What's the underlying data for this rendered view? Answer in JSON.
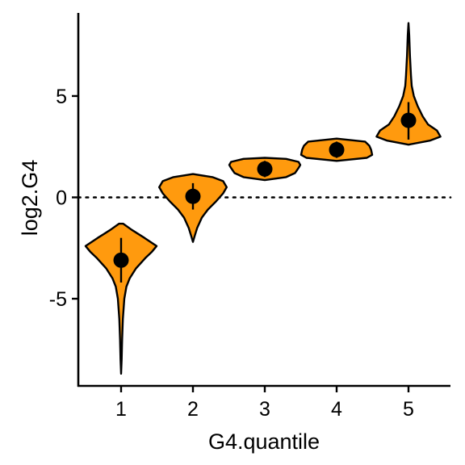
{
  "chart_data": {
    "type": "violin",
    "xlabel": "G4.quantile",
    "ylabel": "log2.G4",
    "categories": [
      "1",
      "2",
      "3",
      "4",
      "5"
    ],
    "x_ticks": [
      "1",
      "2",
      "3",
      "4",
      "5"
    ],
    "y_ticks": [
      {
        "value": 5,
        "label": "5"
      },
      {
        "value": 0,
        "label": "0"
      },
      {
        "value": -5,
        "label": "-5"
      }
    ],
    "ylim": [
      -9.3,
      9.1
    ],
    "reference_line": {
      "y": 0,
      "style": "dotted"
    },
    "fill_color": "#ff9a0e",
    "outline_color": "#000000",
    "point_color": "#000000",
    "grid": false,
    "groups": [
      {
        "category": "1",
        "mean": -3.1,
        "sd_low": -4.2,
        "sd_high": -2.0,
        "density_profile": [
          [
            -8.7,
            0.0
          ],
          [
            -8.0,
            0.015
          ],
          [
            -7.0,
            0.03
          ],
          [
            -6.0,
            0.05
          ],
          [
            -5.0,
            0.09
          ],
          [
            -4.4,
            0.15
          ],
          [
            -4.0,
            0.24
          ],
          [
            -3.5,
            0.42
          ],
          [
            -3.0,
            0.68
          ],
          [
            -2.7,
            0.86
          ],
          [
            -2.4,
            1.0
          ],
          [
            -2.0,
            0.66
          ],
          [
            -1.6,
            0.3
          ],
          [
            -1.3,
            0.06
          ]
        ]
      },
      {
        "category": "2",
        "mean": 0.05,
        "sd_low": -0.6,
        "sd_high": 0.7,
        "density_profile": [
          [
            -2.2,
            0.0
          ],
          [
            -1.9,
            0.05
          ],
          [
            -1.5,
            0.12
          ],
          [
            -1.0,
            0.25
          ],
          [
            -0.6,
            0.42
          ],
          [
            -0.2,
            0.65
          ],
          [
            0.2,
            0.85
          ],
          [
            0.5,
            0.95
          ],
          [
            0.8,
            0.85
          ],
          [
            1.0,
            0.55
          ],
          [
            1.15,
            0.0
          ]
        ]
      },
      {
        "category": "3",
        "mean": 1.4,
        "sd_low": 1.0,
        "sd_high": 1.8,
        "density_profile": [
          [
            0.85,
            0.0
          ],
          [
            1.0,
            0.6
          ],
          [
            1.2,
            0.85
          ],
          [
            1.45,
            0.95
          ],
          [
            1.6,
            1.0
          ],
          [
            1.75,
            0.95
          ],
          [
            1.9,
            0.6
          ],
          [
            1.95,
            0.0
          ]
        ]
      },
      {
        "category": "4",
        "mean": 2.35,
        "sd_low": 1.95,
        "sd_high": 2.75,
        "density_profile": [
          [
            1.8,
            0.0
          ],
          [
            1.95,
            0.85
          ],
          [
            2.1,
            1.0
          ],
          [
            2.35,
            0.97
          ],
          [
            2.55,
            0.92
          ],
          [
            2.75,
            0.8
          ],
          [
            2.9,
            0.0
          ]
        ]
      },
      {
        "category": "5",
        "mean": 3.8,
        "sd_low": 2.85,
        "sd_high": 4.7,
        "density_profile": [
          [
            2.6,
            0.0
          ],
          [
            2.8,
            0.6
          ],
          [
            3.0,
            0.9
          ],
          [
            3.3,
            0.8
          ],
          [
            3.6,
            0.55
          ],
          [
            4.0,
            0.4
          ],
          [
            4.5,
            0.26
          ],
          [
            5.0,
            0.15
          ],
          [
            5.5,
            0.09
          ],
          [
            6.0,
            0.07
          ],
          [
            7.0,
            0.04
          ],
          [
            8.0,
            0.02
          ],
          [
            8.6,
            0.0
          ]
        ]
      }
    ]
  }
}
